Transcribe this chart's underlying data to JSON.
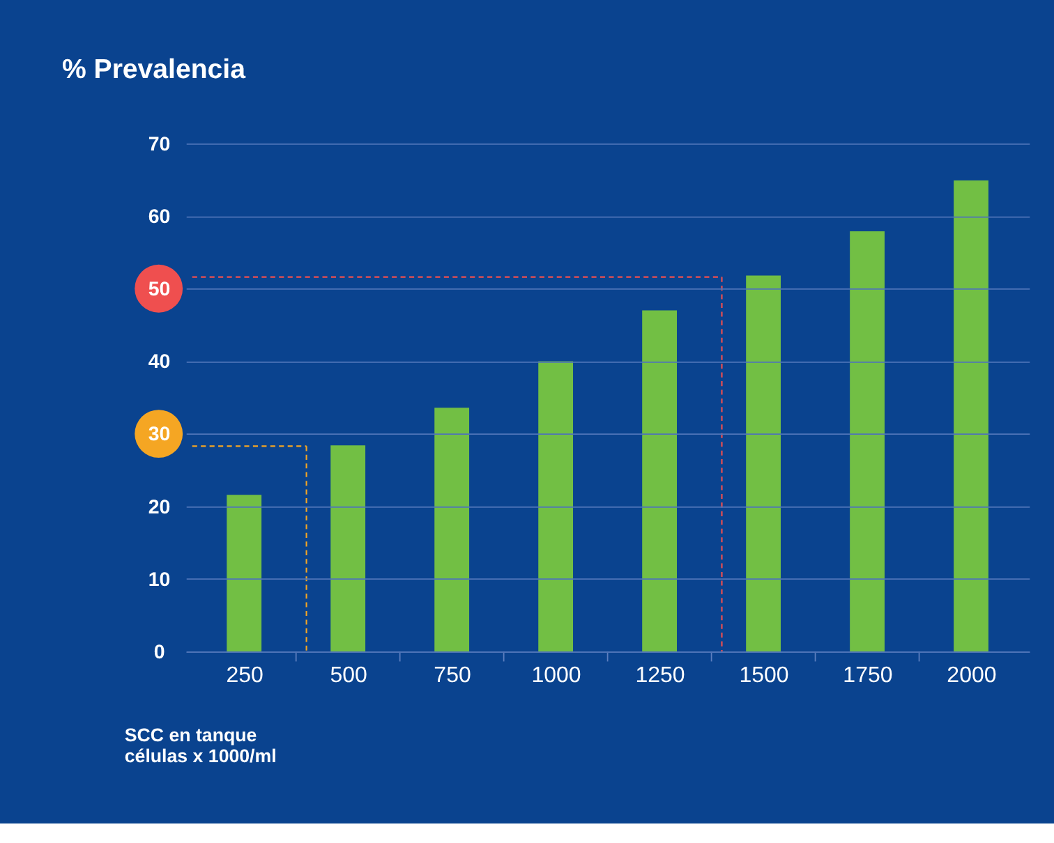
{
  "chart_data": {
    "type": "bar",
    "title": "% Prevalencia",
    "xlabel": "SCC en tanque\ncélulas x 1000/ml",
    "categories": [
      "250",
      "500",
      "750",
      "1000",
      "1250",
      "1500",
      "1750",
      "2000"
    ],
    "values": [
      21.6,
      28.4,
      33.6,
      40,
      47,
      51.8,
      57.9,
      64.9
    ],
    "color": "#72bf44",
    "ylim": [
      0,
      70
    ],
    "yticks": [
      0,
      10,
      20,
      30,
      40,
      50,
      60,
      70
    ],
    "grid": "y",
    "ref_lines": [
      {
        "axis": "y",
        "value": 28.3,
        "color": "#f5a623",
        "line_style": "dashed"
      },
      {
        "axis": "x",
        "value": "500",
        "color": "#f5a623",
        "line_style": "dashed"
      },
      {
        "axis": "y",
        "value": 51.6,
        "color": "#ef4f4f",
        "line_style": "dashed"
      },
      {
        "axis": "x",
        "value": "1500",
        "color": "#ef4f4f",
        "line_style": "dashed"
      }
    ]
  }
}
